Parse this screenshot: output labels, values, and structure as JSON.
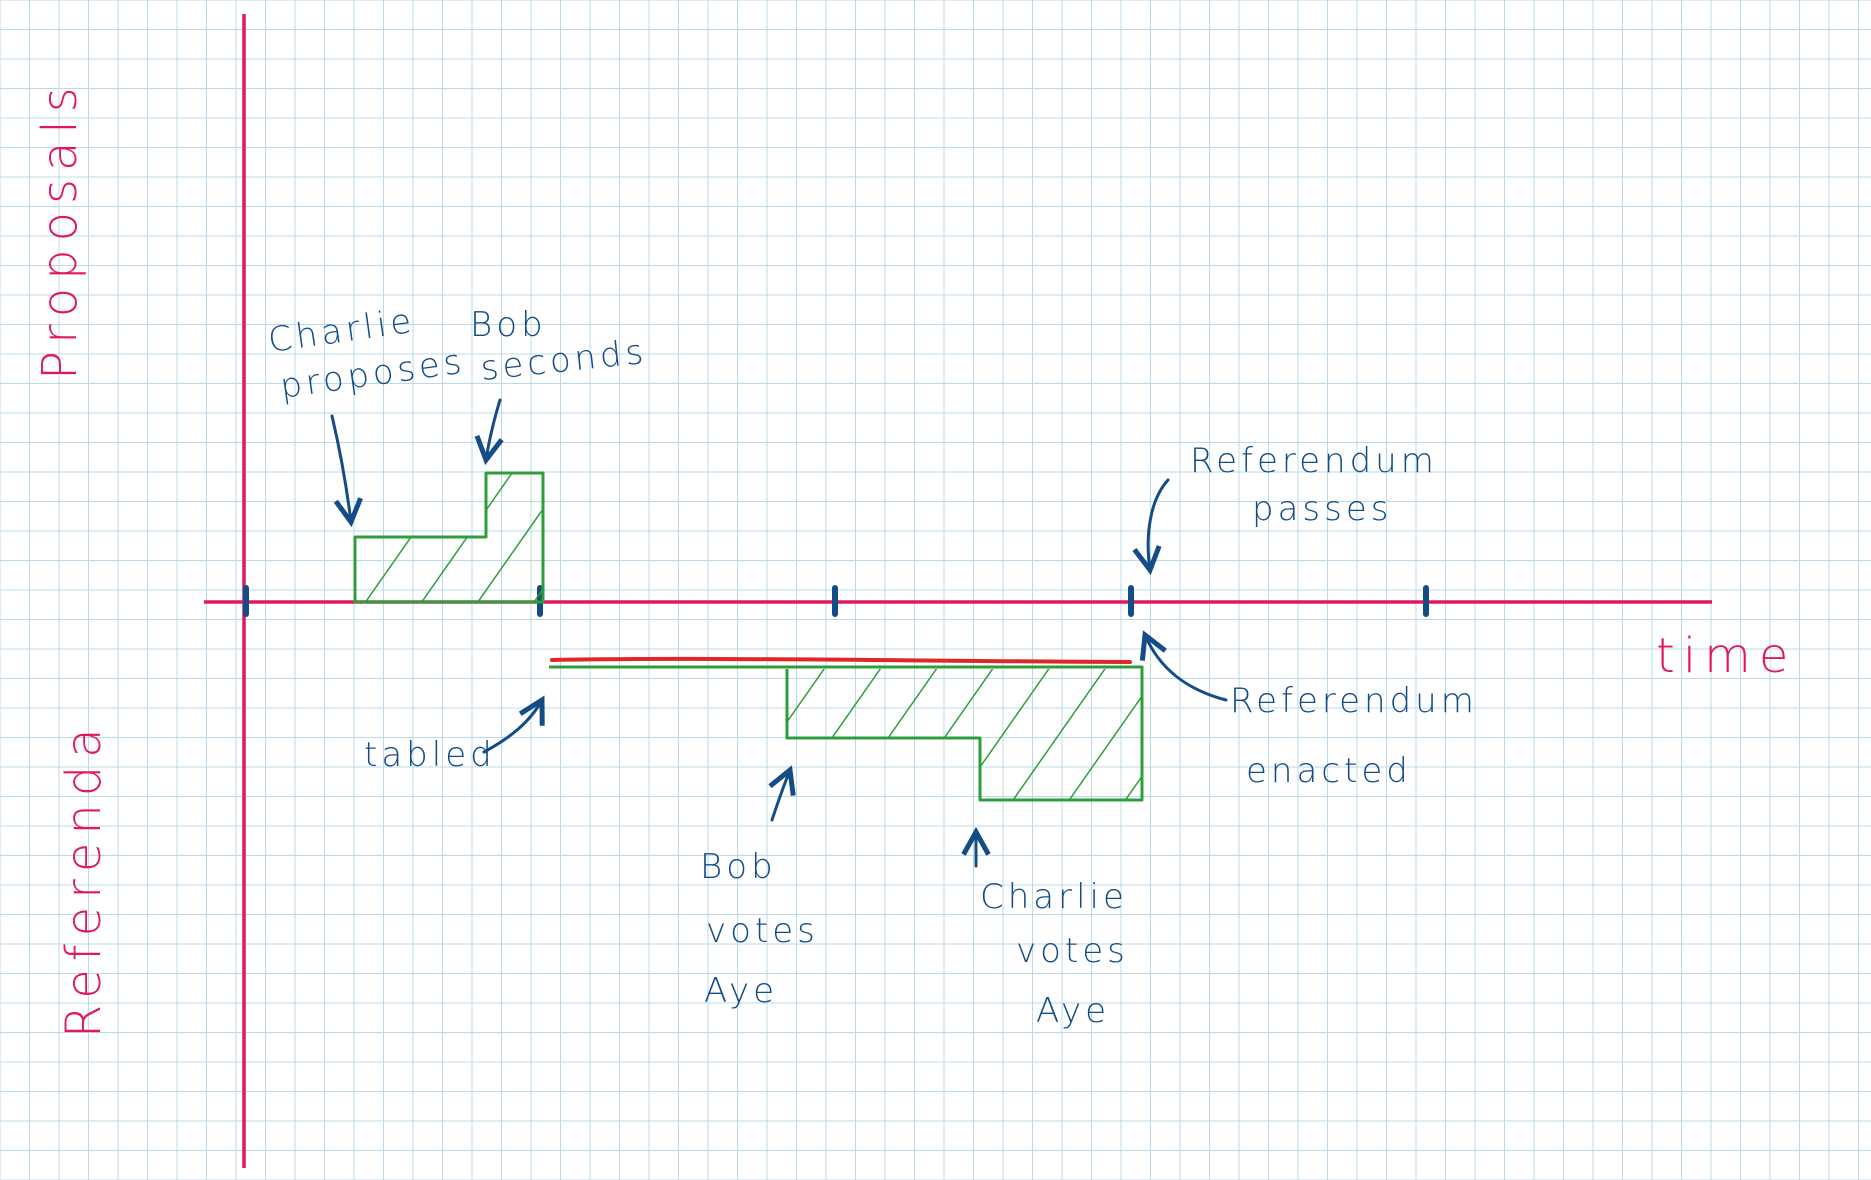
{
  "colors": {
    "grid": "#bcd9ea",
    "axis": "#e0185f",
    "ink": "#144c86",
    "block": "#2e9e3c",
    "deposit": "#e02828"
  },
  "labels": {
    "y_top": "Proposals",
    "y_bottom": "Referenda",
    "x_axis": "time"
  },
  "annotations": {
    "charlie_proposes": [
      "Charlie",
      "proposes"
    ],
    "bob_seconds": [
      "Bob",
      "seconds"
    ],
    "referendum_passes": [
      "Referendum",
      "passes"
    ],
    "tabled": "tabled",
    "referendum_enacted": [
      "Referendum",
      "enacted"
    ],
    "bob_votes": [
      "Bob",
      "votes",
      "Aye"
    ],
    "charlie_votes": [
      "Charlie",
      "votes",
      "Aye"
    ]
  }
}
